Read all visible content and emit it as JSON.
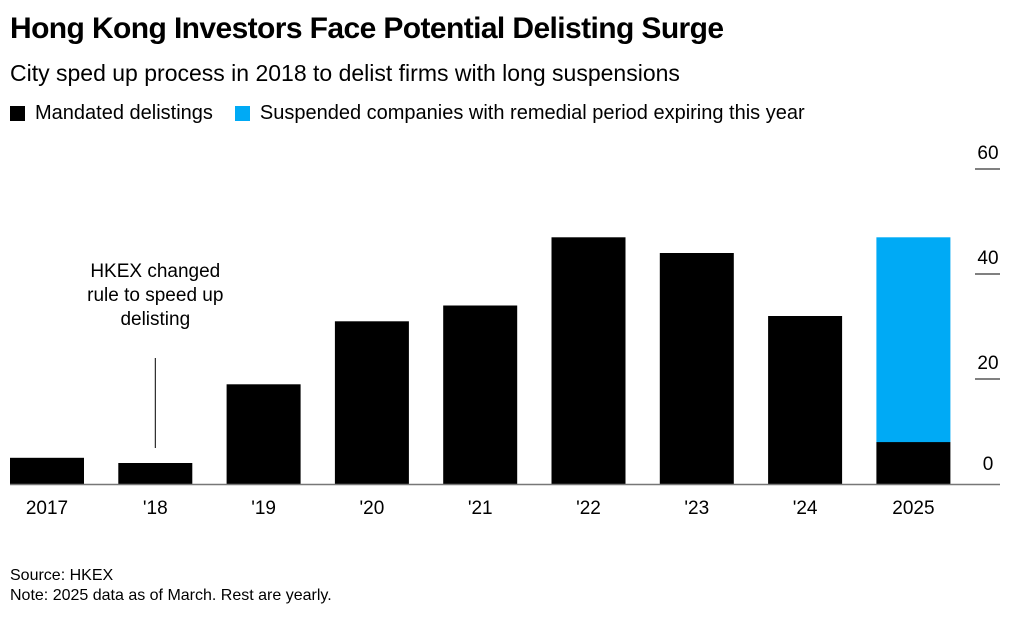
{
  "header": {
    "title": "Hong Kong Investors Face Potential Delisting Surge",
    "subtitle": "City sped up process in 2018 to delist firms with long suspensions"
  },
  "legend": [
    {
      "label": "Mandated delistings",
      "color": "#000000"
    },
    {
      "label": "Suspended companies with remedial period expiring this year",
      "color": "#00aaf5"
    }
  ],
  "footer": {
    "source": "Source: HKEX",
    "note": "Note: 2025 data as of March. Rest are yearly."
  },
  "chart_data": {
    "type": "bar",
    "stacked": true,
    "categories": [
      "2017",
      "'18",
      "'19",
      "'20",
      "'21",
      "'22",
      "'23",
      "'24",
      "2025"
    ],
    "series": [
      {
        "name": "Mandated delistings",
        "color": "#000000",
        "values": [
          5,
          4,
          19,
          31,
          34,
          47,
          44,
          32,
          8
        ]
      },
      {
        "name": "Suspended companies with remedial period expiring this year",
        "color": "#00aaf5",
        "values": [
          0,
          0,
          0,
          0,
          0,
          0,
          0,
          0,
          39
        ]
      }
    ],
    "ylim": [
      0,
      60
    ],
    "yticks": [
      0,
      20,
      40,
      60
    ],
    "y_axis_side": "right",
    "grid": false,
    "annotation": {
      "text": [
        "HKEX changed",
        "rule to speed up",
        "delisting"
      ],
      "category": "'18"
    }
  }
}
